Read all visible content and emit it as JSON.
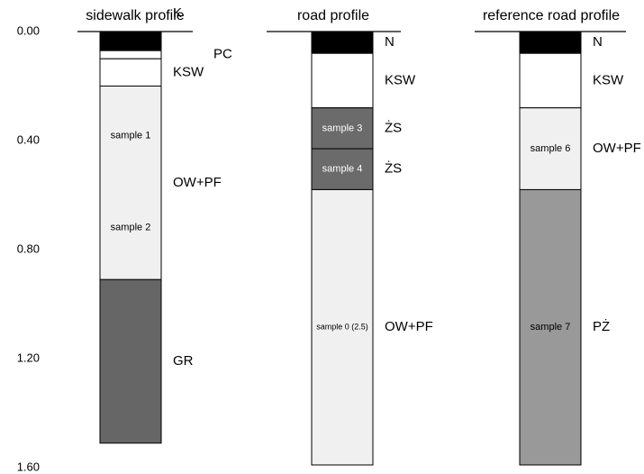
{
  "chart_data": {
    "type": "profile",
    "ylim": [
      0,
      1.6
    ],
    "yticks": [
      {
        "value": 0,
        "label": "0.00"
      },
      {
        "value": 0.4,
        "label": "0.40"
      },
      {
        "value": 0.8,
        "label": "0.80"
      },
      {
        "value": 1.2,
        "label": "1.20"
      },
      {
        "value": 1.6,
        "label": "1.60"
      }
    ],
    "columns": [
      {
        "title": "sidewalk profile",
        "layers": [
          {
            "name": "K",
            "thickness": 0.07,
            "color": "#000000"
          },
          {
            "name": "PC",
            "thickness": 0.03,
            "color": "#ffffff"
          },
          {
            "name": "KSW",
            "thickness": 0.1,
            "color": "#ffffff"
          },
          {
            "name": "OW+PF",
            "thickness": 0.71,
            "color": "#f0f0f0",
            "samples": [
              "sample 1",
              "sample 2"
            ]
          },
          {
            "name": "GR",
            "thickness": 0.6,
            "color": "#666666"
          }
        ]
      },
      {
        "title": "road profile",
        "layers": [
          {
            "name": "N",
            "thickness": 0.08,
            "color": "#000000"
          },
          {
            "name": "KSW",
            "thickness": 0.2,
            "color": "#ffffff"
          },
          {
            "name": "ŻS",
            "thickness": 0.15,
            "color": "#6b6b6b",
            "samples": [
              "sample 3"
            ]
          },
          {
            "name": "ŻS",
            "thickness": 0.15,
            "color": "#6b6b6b",
            "samples": [
              "sample 4"
            ]
          },
          {
            "name": "OW+PF",
            "thickness": 1.01,
            "color": "#f0f0f0",
            "samples": [
              "sample 0 (2.5)"
            ]
          }
        ]
      },
      {
        "title": "reference road profile",
        "layers": [
          {
            "name": "N",
            "thickness": 0.08,
            "color": "#000000"
          },
          {
            "name": "KSW",
            "thickness": 0.2,
            "color": "#ffffff"
          },
          {
            "name": "OW+PF",
            "thickness": 0.3,
            "color": "#f0f0f0",
            "samples": [
              "sample 6"
            ]
          },
          {
            "name": "PŻ",
            "thickness": 1.01,
            "color": "#999999",
            "samples": [
              "sample 7"
            ]
          }
        ]
      }
    ]
  }
}
